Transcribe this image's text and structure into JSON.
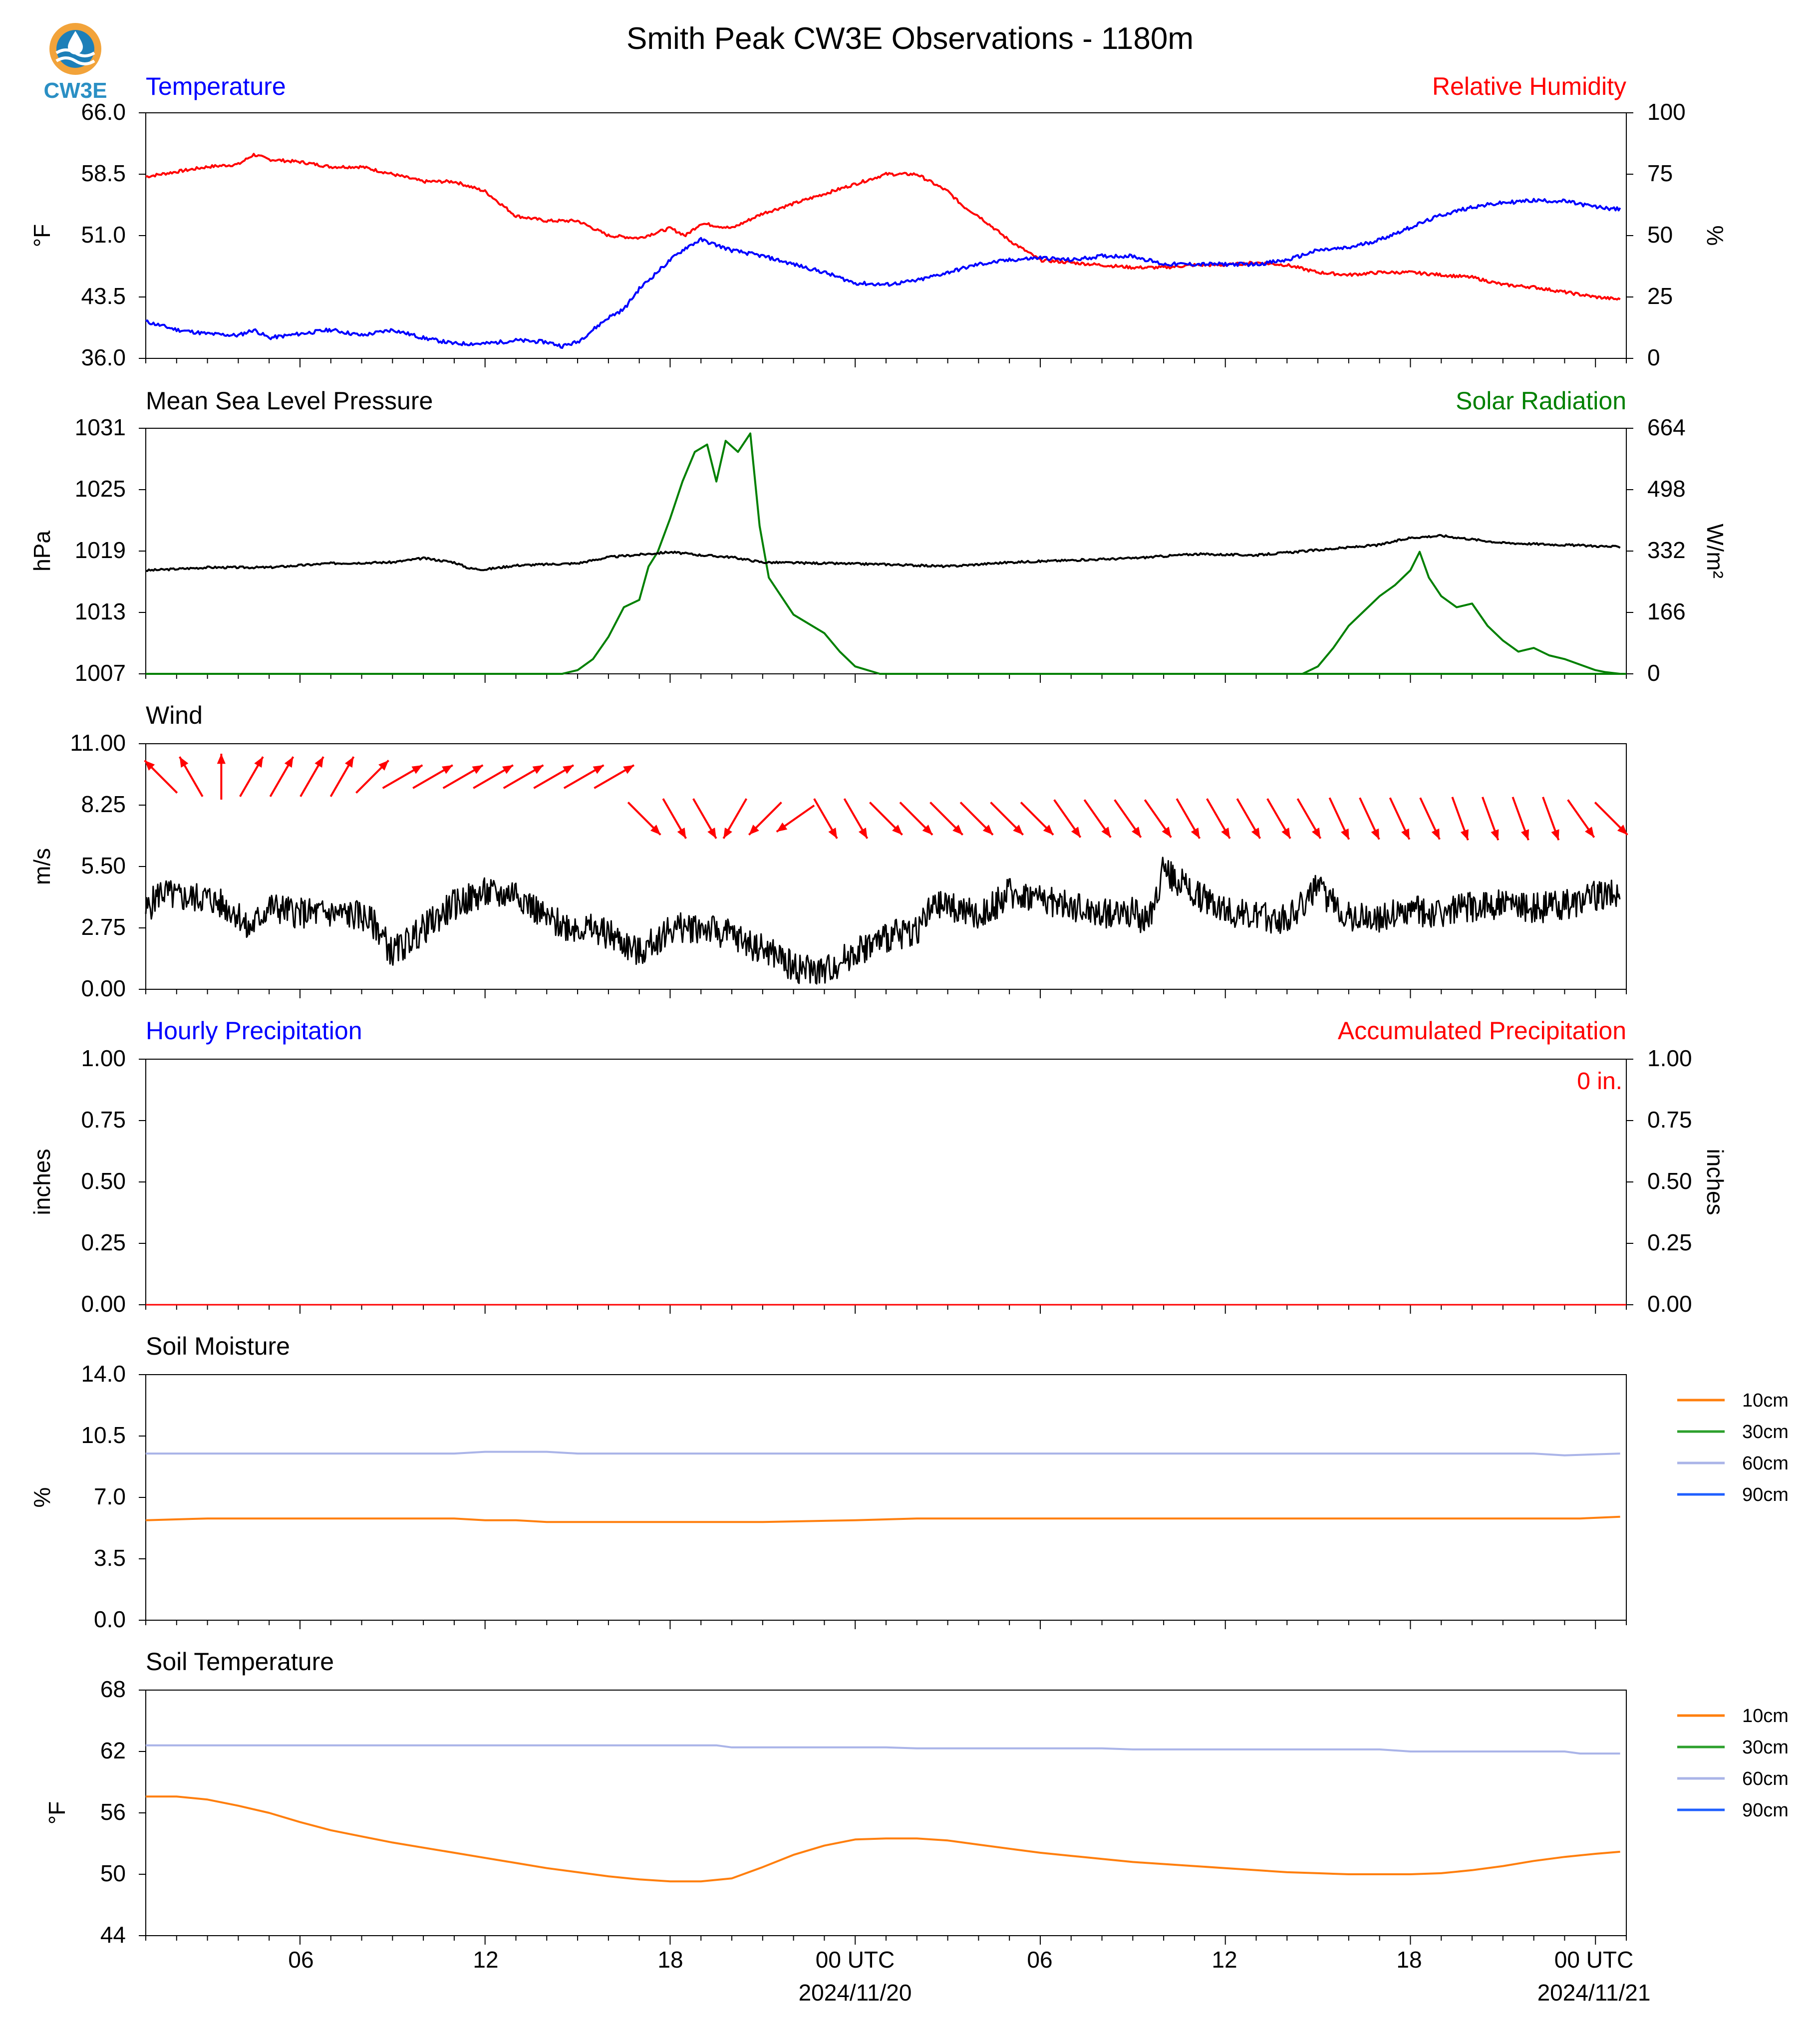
{
  "title": "Smith Peak CW3E Observations - 1180m",
  "logo": {
    "text": "CW3E",
    "colors": {
      "ring": "#f2a33a",
      "water": "#1d7fb8",
      "text": "#2a8fc4"
    }
  },
  "x_axis": {
    "hours_total": 48,
    "ticks": [
      {
        "hour": 5,
        "label": "06",
        "sub": ""
      },
      {
        "hour": 11,
        "label": "12",
        "sub": ""
      },
      {
        "hour": 17,
        "label": "18",
        "sub": ""
      },
      {
        "hour": 23,
        "label": "00 UTC",
        "sub": "2024/11/20"
      },
      {
        "hour": 29,
        "label": "06",
        "sub": ""
      },
      {
        "hour": 35,
        "label": "12",
        "sub": ""
      },
      {
        "hour": 41,
        "label": "18",
        "sub": ""
      },
      {
        "hour": 47,
        "label": "00 UTC",
        "sub": "2024/11/21"
      }
    ]
  },
  "colors": {
    "temperature": "#0000ff",
    "humidity": "#ff0000",
    "pressure": "#000000",
    "solar": "#008000",
    "wind": "#000000",
    "wind_arrows": "#ff0000",
    "hourly_precip": "#0000ff",
    "accum_precip": "#ff0000",
    "soil_10cm": "#ff7f0e",
    "soil_30cm": "#2ca02c",
    "soil_60cm": "#aab4e8",
    "soil_90cm": "#1f5fff"
  },
  "panels": {
    "temp_rh": {
      "left_title": "Temperature",
      "right_title": "Relative Humidity",
      "left_ylabel": "°F",
      "right_ylabel": "%",
      "left_ticks": [
        "36.0",
        "43.5",
        "51.0",
        "58.5",
        "66.0"
      ],
      "right_ticks": [
        "0",
        "25",
        "50",
        "75",
        "100"
      ]
    },
    "pressure_solar": {
      "left_title": "Mean Sea Level Pressure",
      "right_title": "Solar Radiation",
      "left_ylabel": "hPa",
      "right_ylabel": "W/m²",
      "left_ticks": [
        "1007",
        "1013",
        "1019",
        "1025",
        "1031"
      ],
      "right_ticks": [
        "0",
        "166",
        "332",
        "498",
        "664"
      ]
    },
    "wind": {
      "left_title": "Wind",
      "left_ylabel": "m/s",
      "left_ticks": [
        "0.00",
        "2.75",
        "5.50",
        "8.25",
        "11.00"
      ]
    },
    "precip": {
      "left_title": "Hourly Precipitation",
      "right_title": "Accumulated Precipitation",
      "left_ylabel": "inches",
      "right_ylabel": "inches",
      "left_ticks": [
        "0.00",
        "0.25",
        "0.50",
        "0.75",
        "1.00"
      ],
      "right_ticks": [
        "0.00",
        "0.25",
        "0.50",
        "0.75",
        "1.00"
      ],
      "accum_label": "0 in."
    },
    "soil_moisture": {
      "left_title": "Soil Moisture",
      "left_ylabel": "%",
      "left_ticks": [
        "0.0",
        "3.5",
        "7.0",
        "10.5",
        "14.0"
      ],
      "legend": [
        "10cm",
        "30cm",
        "60cm",
        "90cm"
      ]
    },
    "soil_temp": {
      "left_title": "Soil Temperature",
      "left_ylabel": "°F",
      "left_ticks": [
        "44",
        "50",
        "56",
        "62",
        "68"
      ],
      "legend": [
        "10cm",
        "30cm",
        "60cm",
        "90cm"
      ]
    }
  },
  "chart_data": [
    {
      "type": "line",
      "title": "Temperature / Relative Humidity",
      "x_unit": "hours since 2024/11/19 01 UTC",
      "ylim": [
        36,
        66
      ],
      "y2lim": [
        0,
        100
      ],
      "series": [
        {
          "name": "Temperature",
          "axis": "left",
          "x": [
            0,
            1,
            2,
            3,
            3.5,
            4,
            5,
            6,
            7,
            8,
            9,
            10,
            11,
            12,
            13,
            13.5,
            14,
            15,
            15.5,
            16,
            17,
            17.5,
            18,
            19,
            20,
            21,
            22,
            23,
            24,
            25,
            26,
            27,
            28,
            29,
            30,
            31,
            32,
            33,
            34,
            35,
            36,
            37,
            38,
            39,
            40,
            41,
            42,
            43,
            44,
            45,
            46,
            47,
            47.8
          ],
          "y": [
            40.5,
            39.5,
            39,
            38.8,
            39.5,
            38.5,
            39,
            39.5,
            38.8,
            39.5,
            38.5,
            37.8,
            37.8,
            38.2,
            38,
            37.5,
            38,
            41,
            42,
            44.5,
            48,
            49.5,
            50.5,
            49.2,
            48.5,
            47.5,
            46.5,
            45.2,
            45,
            45.5,
            46.5,
            47.5,
            48,
            48.3,
            48,
            48.5,
            48.5,
            47.5,
            47.5,
            47.5,
            47.5,
            48,
            49.2,
            49.5,
            50.5,
            52,
            53.5,
            54.5,
            55,
            55.3,
            55.2,
            54.5,
            54.2
          ]
        },
        {
          "name": "Relative Humidity",
          "axis": "right",
          "x": [
            0,
            1,
            2,
            3,
            3.5,
            4,
            5,
            6,
            7,
            8,
            9,
            10,
            10.5,
            11,
            12,
            13,
            14,
            15,
            16,
            17,
            17.5,
            18,
            19,
            20,
            21,
            22,
            23,
            24,
            25,
            26,
            26.5,
            27,
            28,
            29,
            30,
            31,
            32,
            33,
            34,
            35,
            36,
            37,
            38,
            39,
            40,
            41,
            42,
            43,
            44,
            45,
            46,
            47,
            47.8
          ],
          "y": [
            74,
            76,
            78,
            79,
            83,
            81,
            80,
            78,
            78,
            75,
            72,
            72,
            70,
            68,
            58,
            56,
            56,
            50,
            49,
            53,
            50,
            55,
            53,
            59,
            63,
            67,
            71,
            75,
            75,
            68,
            62,
            58,
            48,
            40,
            39,
            38,
            37,
            37,
            38,
            38,
            39,
            38,
            35,
            34,
            35,
            35,
            34,
            33,
            30,
            29,
            27,
            25,
            24
          ]
        }
      ]
    },
    {
      "type": "line",
      "title": "Mean Sea Level Pressure / Solar Radiation",
      "x_unit": "hours since 2024/11/19 01 UTC",
      "ylim": [
        1007,
        1031
      ],
      "y2lim": [
        0,
        664
      ],
      "series": [
        {
          "name": "Mean Sea Level Pressure",
          "axis": "left",
          "x": [
            0,
            2,
            4,
            6,
            8,
            9,
            10,
            10.5,
            11,
            12,
            14,
            15,
            17,
            18,
            19,
            20,
            22,
            24,
            26,
            28,
            30,
            32,
            34,
            36,
            38,
            40,
            41,
            42,
            44,
            46,
            47.8
          ],
          "y": [
            1017.1,
            1017.4,
            1017.4,
            1017.8,
            1017.9,
            1018.3,
            1017.9,
            1017.3,
            1017.2,
            1017.6,
            1017.8,
            1018.4,
            1018.9,
            1018.6,
            1018.4,
            1017.9,
            1017.8,
            1017.7,
            1017.5,
            1017.9,
            1018.1,
            1018.3,
            1018.7,
            1018.6,
            1019.1,
            1019.6,
            1020.3,
            1020.5,
            1019.8,
            1019.6,
            1019.4
          ]
        },
        {
          "name": "Solar Radiation",
          "axis": "right",
          "x": [
            0,
            13.5,
            14,
            14.5,
            15,
            15.5,
            16,
            16.3,
            16.6,
            17,
            17.4,
            17.8,
            18.2,
            18.5,
            18.8,
            19.2,
            19.6,
            19.9,
            20.2,
            20.6,
            21,
            22,
            22.5,
            23,
            23.8,
            48
          ],
          "y": [
            0,
            0,
            10,
            40,
            100,
            180,
            200,
            290,
            330,
            420,
            520,
            600,
            620,
            520,
            630,
            600,
            650,
            400,
            260,
            210,
            160,
            110,
            60,
            20,
            0,
            0
          ]
        },
        {
          "name": "Solar Radiation (day 2)",
          "axis": "right",
          "x": [
            37.5,
            38,
            38.5,
            39,
            39.5,
            40,
            40.5,
            41,
            41.3,
            41.6,
            42,
            42.5,
            43,
            43.5,
            44,
            44.5,
            45,
            45.5,
            46,
            46.5,
            47,
            47.3,
            47.8
          ],
          "y": [
            0,
            20,
            70,
            130,
            170,
            210,
            240,
            280,
            330,
            260,
            210,
            180,
            190,
            130,
            90,
            60,
            70,
            50,
            40,
            25,
            10,
            5,
            0
          ]
        }
      ]
    },
    {
      "type": "line",
      "title": "Wind",
      "x_unit": "hours since 2024/11/19 01 UTC",
      "ylim": [
        0,
        11
      ],
      "series": [
        {
          "name": "Wind",
          "x": [
            0,
            0.5,
            1,
            2,
            3,
            3.3,
            4,
            5,
            6,
            7,
            7.5,
            8,
            9,
            10,
            11,
            11.5,
            12,
            13,
            13.5,
            14,
            15,
            16,
            17,
            18,
            19,
            20,
            20.5,
            21,
            22,
            23,
            24,
            25,
            25.5,
            26,
            27,
            28,
            29,
            30,
            31,
            32,
            32.5,
            33,
            34,
            35,
            36,
            37,
            38,
            39,
            40,
            41,
            42,
            43,
            44,
            45,
            46,
            47,
            47.8
          ],
          "y": [
            3.5,
            4.4,
            4.1,
            4.1,
            3.4,
            2.6,
            3.7,
            3.4,
            3.4,
            3.3,
            2.8,
            1.6,
            2.7,
            3.8,
            4.3,
            4.2,
            4.4,
            3.1,
            2.9,
            2.8,
            2.5,
            1.6,
            2.7,
            2.8,
            2.4,
            1.8,
            1.5,
            1.0,
            0.8,
            1.7,
            2.3,
            2.7,
            3.6,
            3.8,
            3.2,
            4.3,
            4.1,
            3.7,
            3.4,
            3.5,
            2.9,
            5.4,
            4.3,
            3.6,
            3.2,
            3.2,
            4.5,
            3.3,
            3.2,
            3.5,
            3.4,
            3.7,
            3.8,
            3.6,
            3.8,
            4.2,
            4.3
          ]
        }
      ],
      "wind_directions_deg": [
        315,
        330,
        360,
        30,
        30,
        30,
        30,
        45,
        60,
        60,
        60,
        60,
        60,
        60,
        60,
        60,
        135,
        150,
        150,
        210,
        225,
        235,
        150,
        150,
        135,
        135,
        135,
        135,
        135,
        135,
        145,
        145,
        145,
        145,
        150,
        150,
        150,
        150,
        150,
        155,
        155,
        155,
        155,
        160,
        160,
        160,
        160,
        145,
        135
      ]
    },
    {
      "type": "line",
      "title": "Hourly Precipitation / Accumulated Precipitation",
      "x_unit": "hours since 2024/11/19 01 UTC",
      "ylim": [
        0,
        1
      ],
      "y2lim": [
        0,
        1
      ],
      "series": [
        {
          "name": "Hourly Precipitation",
          "axis": "left",
          "x": [
            0,
            48
          ],
          "y": [
            0,
            0
          ]
        },
        {
          "name": "Accumulated Precipitation",
          "axis": "right",
          "x": [
            0,
            48
          ],
          "y": [
            0,
            0
          ]
        }
      ]
    },
    {
      "type": "line",
      "title": "Soil Moisture",
      "x_unit": "hours since 2024/11/19 01 UTC",
      "ylim": [
        0,
        14
      ],
      "series": [
        {
          "name": "10cm",
          "x": [
            0,
            2,
            10,
            11,
            12,
            13,
            14,
            20,
            23,
            25,
            46.5,
            47.8
          ],
          "y": [
            5.7,
            5.8,
            5.8,
            5.7,
            5.7,
            5.6,
            5.6,
            5.6,
            5.7,
            5.8,
            5.8,
            5.9
          ]
        },
        {
          "name": "60cm",
          "x": [
            0,
            9,
            10,
            11,
            13,
            14,
            20,
            23,
            29,
            35,
            41,
            45,
            46,
            47.8
          ],
          "y": [
            9.5,
            9.5,
            9.5,
            9.6,
            9.6,
            9.5,
            9.5,
            9.5,
            9.5,
            9.5,
            9.5,
            9.5,
            9.4,
            9.5
          ]
        }
      ]
    },
    {
      "type": "line",
      "title": "Soil Temperature",
      "x_unit": "hours since 2024/11/19 01 UTC",
      "ylim": [
        44,
        68
      ],
      "series": [
        {
          "name": "10cm",
          "x": [
            0,
            1,
            2,
            3,
            4,
            5,
            6,
            7,
            8,
            9,
            10,
            11,
            12,
            13,
            14,
            15,
            16,
            17,
            18,
            19,
            20,
            21,
            22,
            23,
            24,
            25,
            26,
            27,
            28,
            29,
            30,
            31,
            32,
            33,
            34,
            35,
            36,
            37,
            38,
            39,
            40,
            41,
            42,
            43,
            44,
            45,
            46,
            47,
            47.8
          ],
          "y": [
            57.6,
            57.6,
            57.3,
            56.7,
            56.0,
            55.1,
            54.3,
            53.7,
            53.1,
            52.6,
            52.1,
            51.6,
            51.1,
            50.6,
            50.2,
            49.8,
            49.5,
            49.3,
            49.3,
            49.6,
            50.7,
            51.9,
            52.8,
            53.4,
            53.5,
            53.5,
            53.3,
            52.9,
            52.5,
            52.1,
            51.8,
            51.5,
            51.2,
            51.0,
            50.8,
            50.6,
            50.4,
            50.2,
            50.1,
            50.0,
            50.0,
            50.0,
            50.1,
            50.4,
            50.8,
            51.3,
            51.7,
            52.0,
            52.2
          ]
        },
        {
          "name": "60cm",
          "x": [
            0,
            18.5,
            19,
            24,
            25,
            31,
            32,
            40,
            41,
            46,
            46.5,
            47.8
          ],
          "y": [
            62.6,
            62.6,
            62.4,
            62.4,
            62.3,
            62.3,
            62.2,
            62.2,
            62.0,
            62.0,
            61.8,
            61.8
          ]
        }
      ]
    }
  ]
}
